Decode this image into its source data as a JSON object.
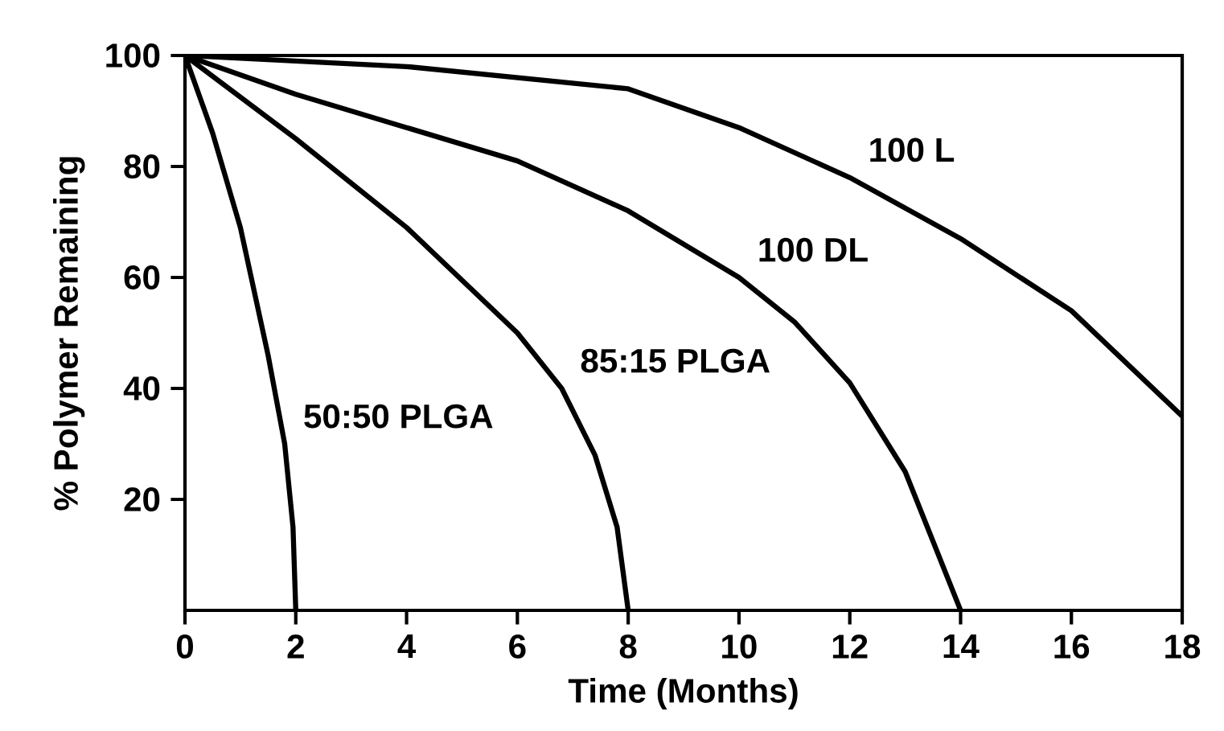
{
  "chart_data": {
    "type": "line",
    "xlabel": "Time (Months)",
    "ylabel": "% Polymer Remaining",
    "xlim": [
      0,
      18
    ],
    "ylim": [
      0,
      100
    ],
    "xticks": [
      0,
      2,
      4,
      6,
      8,
      10,
      12,
      14,
      16,
      18
    ],
    "yticks": [
      20,
      40,
      60,
      80,
      100
    ],
    "grid": false,
    "marker": "none",
    "line_style": "solid",
    "series": [
      {
        "color": "#000000",
        "x": [
          0,
          0.5,
          1,
          1.5,
          1.8,
          1.95,
          2
        ],
        "values": [
          100,
          86,
          69,
          46,
          30,
          15,
          0
        ]
      },
      {
        "color": "#000000",
        "x": [
          0,
          2,
          4,
          6,
          6.8,
          7.4,
          7.8,
          8
        ],
        "values": [
          100,
          85,
          69,
          50,
          40,
          28,
          15,
          0
        ]
      },
      {
        "color": "#000000",
        "x": [
          0,
          2,
          4,
          6,
          8,
          10,
          11,
          12,
          13,
          14
        ],
        "values": [
          100,
          93,
          87,
          81,
          72,
          60,
          52,
          41,
          25,
          0
        ]
      },
      {
        "color": "#000000",
        "x": [
          0,
          4,
          8,
          10,
          12,
          14,
          16,
          18
        ],
        "values": [
          100,
          98,
          94,
          87,
          78,
          67,
          54,
          35
        ]
      }
    ],
    "annotations": [
      {
        "text": "50:50 PLGA",
        "x": 1.8,
        "y": 30
      },
      {
        "text": "85:15 PLGA",
        "x": 6.8,
        "y": 40
      },
      {
        "text": "100 DL",
        "x": 10,
        "y": 60
      },
      {
        "text": "100 L",
        "x": 12,
        "y": 78
      }
    ]
  }
}
